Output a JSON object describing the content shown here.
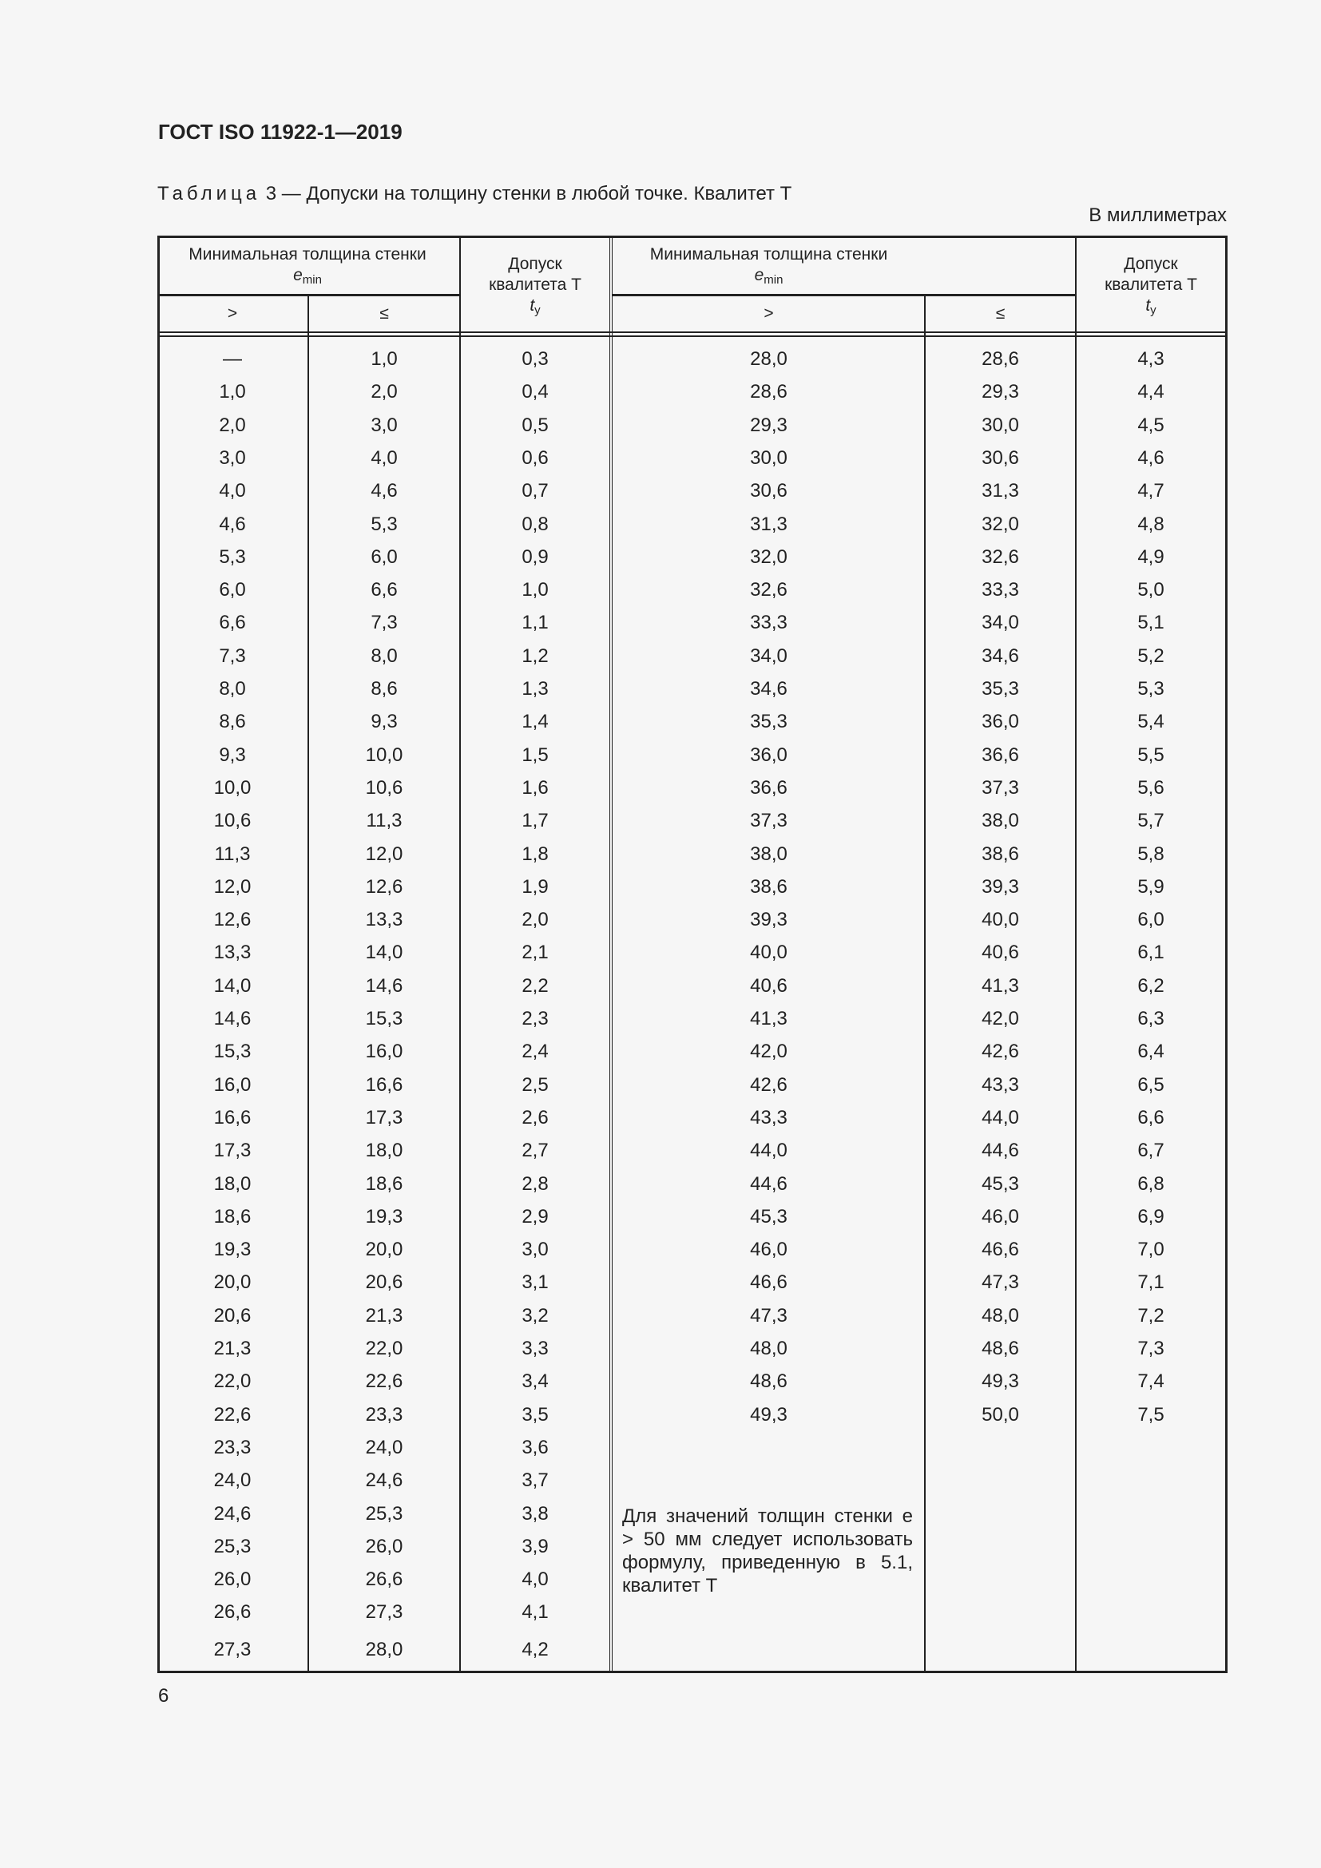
{
  "header": {
    "doc_title": "ГОСТ ISO 11922-1—2019"
  },
  "table": {
    "caption_prefix": "Таблица",
    "caption_text": " 3 — Допуски на толщину стенки в любой точке. Квалитет Т",
    "units": "В миллиметрах",
    "headers": {
      "min_thickness": "Минимальная толщина стенки",
      "e_symbol": "e",
      "e_sub": "min",
      "tolerance_line1": "Допуск",
      "tolerance_line2": "квалитета Т",
      "t_symbol": "t",
      "t_sub": "y",
      "gt": ">",
      "le": "≤"
    },
    "left_rows": [
      [
        "—",
        "1,0",
        "0,3"
      ],
      [
        "1,0",
        "2,0",
        "0,4"
      ],
      [
        "2,0",
        "3,0",
        "0,5"
      ],
      [
        "3,0",
        "4,0",
        "0,6"
      ],
      [
        "4,0",
        "4,6",
        "0,7"
      ],
      [
        "4,6",
        "5,3",
        "0,8"
      ],
      [
        "5,3",
        "6,0",
        "0,9"
      ],
      [
        "6,0",
        "6,6",
        "1,0"
      ],
      [
        "6,6",
        "7,3",
        "1,1"
      ],
      [
        "7,3",
        "8,0",
        "1,2"
      ],
      [
        "8,0",
        "8,6",
        "1,3"
      ],
      [
        "8,6",
        "9,3",
        "1,4"
      ],
      [
        "9,3",
        "10,0",
        "1,5"
      ],
      [
        "10,0",
        "10,6",
        "1,6"
      ],
      [
        "10,6",
        "11,3",
        "1,7"
      ],
      [
        "11,3",
        "12,0",
        "1,8"
      ],
      [
        "12,0",
        "12,6",
        "1,9"
      ],
      [
        "12,6",
        "13,3",
        "2,0"
      ],
      [
        "13,3",
        "14,0",
        "2,1"
      ],
      [
        "14,0",
        "14,6",
        "2,2"
      ],
      [
        "14,6",
        "15,3",
        "2,3"
      ],
      [
        "15,3",
        "16,0",
        "2,4"
      ],
      [
        "16,0",
        "16,6",
        "2,5"
      ],
      [
        "16,6",
        "17,3",
        "2,6"
      ],
      [
        "17,3",
        "18,0",
        "2,7"
      ],
      [
        "18,0",
        "18,6",
        "2,8"
      ],
      [
        "18,6",
        "19,3",
        "2,9"
      ],
      [
        "19,3",
        "20,0",
        "3,0"
      ],
      [
        "20,0",
        "20,6",
        "3,1"
      ],
      [
        "20,6",
        "21,3",
        "3,2"
      ],
      [
        "21,3",
        "22,0",
        "3,3"
      ],
      [
        "22,0",
        "22,6",
        "3,4"
      ],
      [
        "22,6",
        "23,3",
        "3,5"
      ],
      [
        "23,3",
        "24,0",
        "3,6"
      ],
      [
        "24,0",
        "24,6",
        "3,7"
      ],
      [
        "24,6",
        "25,3",
        "3,8"
      ],
      [
        "25,3",
        "26,0",
        "3,9"
      ],
      [
        "26,0",
        "26,6",
        "4,0"
      ],
      [
        "26,6",
        "27,3",
        "4,1"
      ],
      [
        "27,3",
        "28,0",
        "4,2"
      ]
    ],
    "right_rows": [
      [
        "28,0",
        "28,6",
        "4,3"
      ],
      [
        "28,6",
        "29,3",
        "4,4"
      ],
      [
        "29,3",
        "30,0",
        "4,5"
      ],
      [
        "30,0",
        "30,6",
        "4,6"
      ],
      [
        "30,6",
        "31,3",
        "4,7"
      ],
      [
        "31,3",
        "32,0",
        "4,8"
      ],
      [
        "32,0",
        "32,6",
        "4,9"
      ],
      [
        "32,6",
        "33,3",
        "5,0"
      ],
      [
        "33,3",
        "34,0",
        "5,1"
      ],
      [
        "34,0",
        "34,6",
        "5,2"
      ],
      [
        "34,6",
        "35,3",
        "5,3"
      ],
      [
        "35,3",
        "36,0",
        "5,4"
      ],
      [
        "36,0",
        "36,6",
        "5,5"
      ],
      [
        "36,6",
        "37,3",
        "5,6"
      ],
      [
        "37,3",
        "38,0",
        "5,7"
      ],
      [
        "38,0",
        "38,6",
        "5,8"
      ],
      [
        "38,6",
        "39,3",
        "5,9"
      ],
      [
        "39,3",
        "40,0",
        "6,0"
      ],
      [
        "40,0",
        "40,6",
        "6,1"
      ],
      [
        "40,6",
        "41,3",
        "6,2"
      ],
      [
        "41,3",
        "42,0",
        "6,3"
      ],
      [
        "42,0",
        "42,6",
        "6,4"
      ],
      [
        "42,6",
        "43,3",
        "6,5"
      ],
      [
        "43,3",
        "44,0",
        "6,6"
      ],
      [
        "44,0",
        "44,6",
        "6,7"
      ],
      [
        "44,6",
        "45,3",
        "6,8"
      ],
      [
        "45,3",
        "46,0",
        "6,9"
      ],
      [
        "46,0",
        "46,6",
        "7,0"
      ],
      [
        "46,6",
        "47,3",
        "7,1"
      ],
      [
        "47,3",
        "48,0",
        "7,2"
      ],
      [
        "48,0",
        "48,6",
        "7,3"
      ],
      [
        "48,6",
        "49,3",
        "7,4"
      ],
      [
        "49,3",
        "50,0",
        "7,5"
      ]
    ],
    "note": "Для значений толщин стенки е > 50 мм следует использовать формулу, приведенную в 5.1, квалитет Т"
  },
  "footer": {
    "page_number": "6"
  }
}
